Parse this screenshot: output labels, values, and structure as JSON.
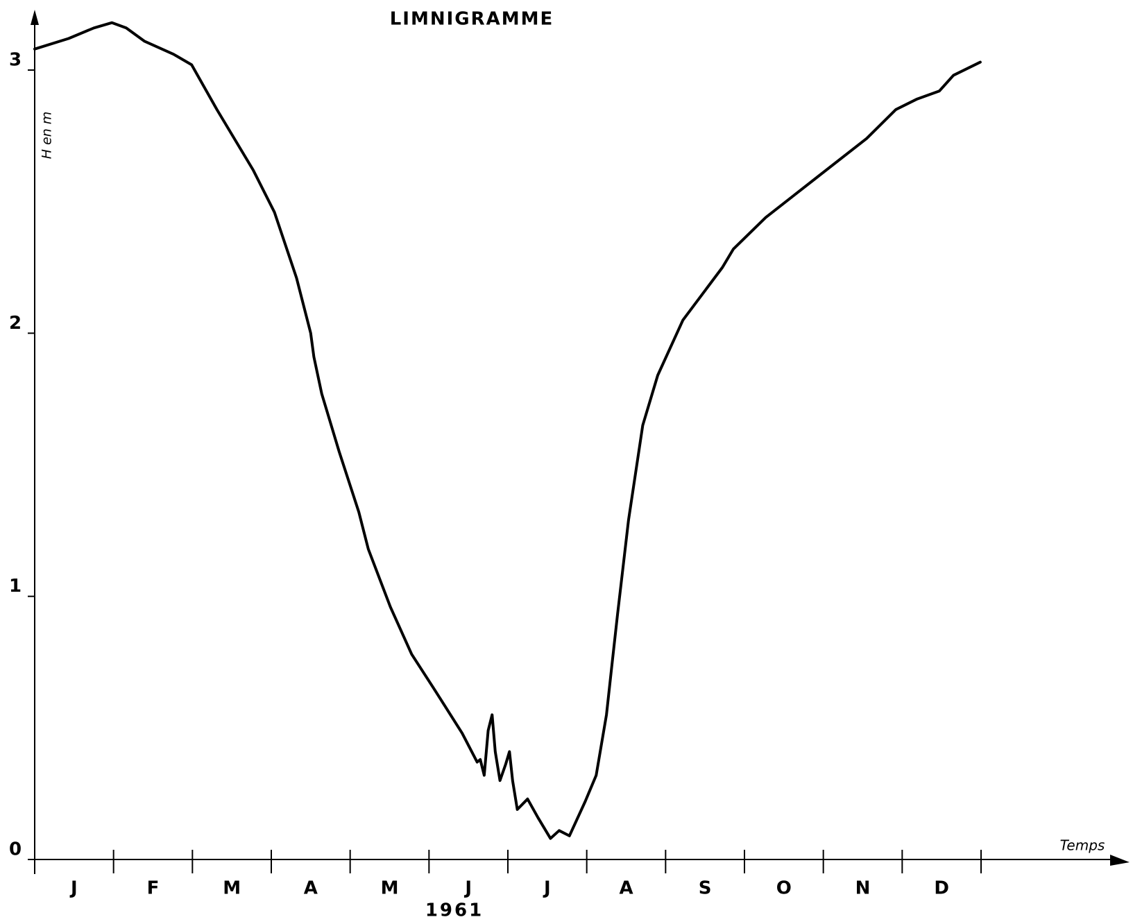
{
  "chart_data": {
    "type": "line",
    "title": "LIMNIGRAMME",
    "y_label": "H en m",
    "x_label": "Temps",
    "year_label": "1961",
    "categories": [
      "J",
      "F",
      "M",
      "A",
      "M",
      "J",
      "J",
      "A",
      "S",
      "O",
      "N",
      "D"
    ],
    "xlim": [
      0,
      12
    ],
    "x": [
      0,
      0.43,
      0.75,
      0.98,
      1.16,
      1.39,
      1.76,
      1.99,
      2.31,
      2.77,
      3.04,
      3.32,
      3.5,
      3.54,
      3.64,
      3.86,
      4.11,
      4.23,
      4.51,
      4.78,
      5.06,
      5.42,
      5.61,
      5.65,
      5.7,
      5.75,
      5.8,
      5.84,
      5.9,
      5.97,
      6.02,
      6.06,
      6.12,
      6.25,
      6.38,
      6.54,
      6.65,
      6.78,
      6.98,
      7.12,
      7.25,
      7.32,
      7.39,
      7.53,
      7.71,
      7.9,
      8.22,
      8.72,
      8.86,
      9.27,
      9.91,
      10.55,
      10.92,
      11.19,
      11.47,
      11.65,
      11.99
    ],
    "values": [
      3.08,
      3.12,
      3.16,
      3.18,
      3.16,
      3.11,
      3.06,
      3.02,
      2.85,
      2.62,
      2.46,
      2.21,
      2.0,
      1.91,
      1.77,
      1.55,
      1.32,
      1.18,
      0.96,
      0.78,
      0.65,
      0.48,
      0.37,
      0.38,
      0.32,
      0.49,
      0.55,
      0.41,
      0.3,
      0.36,
      0.41,
      0.3,
      0.19,
      0.23,
      0.16,
      0.08,
      0.11,
      0.09,
      0.22,
      0.32,
      0.55,
      0.74,
      0.93,
      1.29,
      1.65,
      1.84,
      2.05,
      2.25,
      2.32,
      2.44,
      2.59,
      2.74,
      2.85,
      2.89,
      2.92,
      2.98,
      3.03
    ],
    "color": "#000000",
    "ylim": [
      0,
      3
    ],
    "yticks": [
      0,
      1,
      2,
      3
    ]
  }
}
